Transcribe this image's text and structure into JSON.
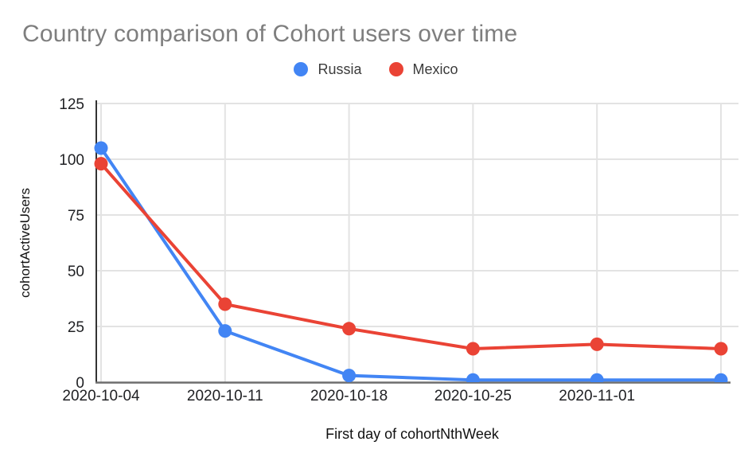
{
  "header": {
    "title": "Country comparison of Cohort users over time"
  },
  "legend": {
    "items": [
      {
        "label": "Russia",
        "color": "#4285F4"
      },
      {
        "label": "Mexico",
        "color": "#EA4335"
      }
    ]
  },
  "chart_data": {
    "type": "line",
    "title": "Country comparison of Cohort users over time",
    "xlabel": "First day of cohortNthWeek",
    "ylabel": "cohortActiveUsers",
    "categories": [
      "2020-10-04",
      "2020-10-11",
      "2020-10-18",
      "2020-10-25",
      "2020-11-01",
      ""
    ],
    "series": [
      {
        "name": "Russia",
        "color": "#4285F4",
        "values": [
          105,
          23,
          3,
          1,
          1,
          1
        ]
      },
      {
        "name": "Mexico",
        "color": "#EA4335",
        "values": [
          98,
          35,
          24,
          15,
          17,
          15
        ]
      }
    ],
    "ylim": [
      0,
      125
    ],
    "yticks": [
      0,
      25,
      50,
      75,
      100,
      125
    ],
    "grid": true,
    "legend_position": "top-center",
    "point_markers": true,
    "colors": {
      "grid": "#e3e3e3",
      "y_axis": "#333333",
      "x_axis": "#6e6e6e",
      "tick_text": "#202124",
      "axis_title_text": "#111111",
      "chart_title": "#7e7e7e"
    }
  }
}
